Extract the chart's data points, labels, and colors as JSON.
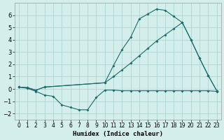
{
  "xlabel": "Humidex (Indice chaleur)",
  "bg_color": "#d4eeec",
  "grid_color": "#aed4d0",
  "line_color": "#1a6b6b",
  "line1_x": [
    0,
    1,
    2,
    3,
    10,
    11,
    12,
    13,
    14,
    15,
    16,
    17,
    18,
    19,
    20,
    21,
    22,
    23
  ],
  "line1_y": [
    0.15,
    0.1,
    -0.1,
    0.15,
    0.5,
    1.9,
    3.2,
    4.2,
    5.7,
    6.1,
    6.5,
    6.4,
    5.9,
    5.4,
    4.0,
    2.5,
    1.1,
    -0.15
  ],
  "line2_x": [
    0,
    1,
    2,
    3,
    4,
    5,
    6,
    7,
    8,
    9,
    10,
    11,
    12,
    13,
    14,
    15,
    16,
    17,
    18,
    19,
    20,
    21,
    22,
    23
  ],
  "line2_y": [
    0.15,
    0.05,
    -0.2,
    -0.5,
    -0.6,
    -1.3,
    -1.5,
    -1.7,
    -1.7,
    -0.7,
    -0.1,
    -0.1,
    -0.15,
    -0.15,
    -0.15,
    -0.15,
    -0.15,
    -0.15,
    -0.15,
    -0.15,
    -0.15,
    -0.15,
    -0.15,
    -0.2
  ],
  "line3_x": [
    0,
    1,
    2,
    3,
    10,
    11,
    12,
    13,
    14,
    15,
    16,
    17,
    18,
    19,
    20,
    21,
    22,
    23
  ],
  "line3_y": [
    0.15,
    0.1,
    -0.1,
    0.15,
    0.5,
    1.0,
    1.55,
    2.1,
    2.7,
    3.3,
    3.9,
    4.4,
    4.9,
    5.4,
    4.0,
    2.5,
    1.1,
    -0.15
  ],
  "xlim": [
    -0.5,
    23.5
  ],
  "ylim": [
    -2.5,
    7.0
  ],
  "yticks": [
    -2,
    -1,
    0,
    1,
    2,
    3,
    4,
    5,
    6
  ],
  "xticks": [
    0,
    1,
    2,
    3,
    4,
    5,
    6,
    7,
    8,
    9,
    10,
    11,
    12,
    13,
    14,
    15,
    16,
    17,
    18,
    19,
    20,
    21,
    22,
    23
  ],
  "tick_fontsize": 5.5,
  "xlabel_fontsize": 6.5,
  "linewidth": 0.8,
  "markersize": 2.0
}
